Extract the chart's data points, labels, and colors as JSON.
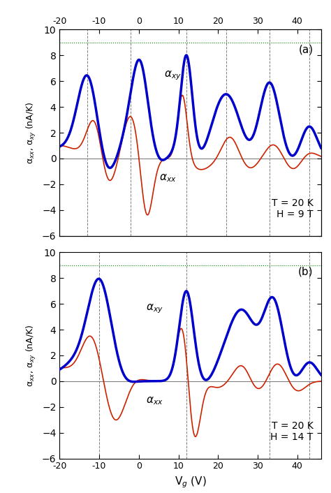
{
  "title_a": "(a)",
  "title_b": "(b)",
  "annotation_a": "T = 20 K\nH = 9 T",
  "annotation_b": "T = 20 K\nH = 14 T",
  "ylabel": "α$_{xx}$, α$_{xy}$ (nA/K)",
  "xlabel": "V$_g$ (V)",
  "xlim": [
    -20,
    46
  ],
  "ylim": [
    -6,
    10
  ],
  "xticks_bottom": [
    -20,
    -10,
    0,
    10,
    20,
    30,
    40
  ],
  "xticks_top": [
    -20,
    -10,
    0,
    10,
    20,
    30,
    40
  ],
  "yticks": [
    -6,
    -4,
    -2,
    0,
    2,
    4,
    6,
    8,
    10
  ],
  "vlines_a": [
    -13,
    -2,
    12,
    22,
    33,
    43
  ],
  "vlines_b": [
    -10,
    12,
    33,
    43
  ],
  "dotted_line_y": 9.0,
  "blue_color": "#0000cc",
  "red_color": "#cc2200",
  "background_color": "#ffffff",
  "blue_lw": 2.5,
  "red_lw": 1.2
}
